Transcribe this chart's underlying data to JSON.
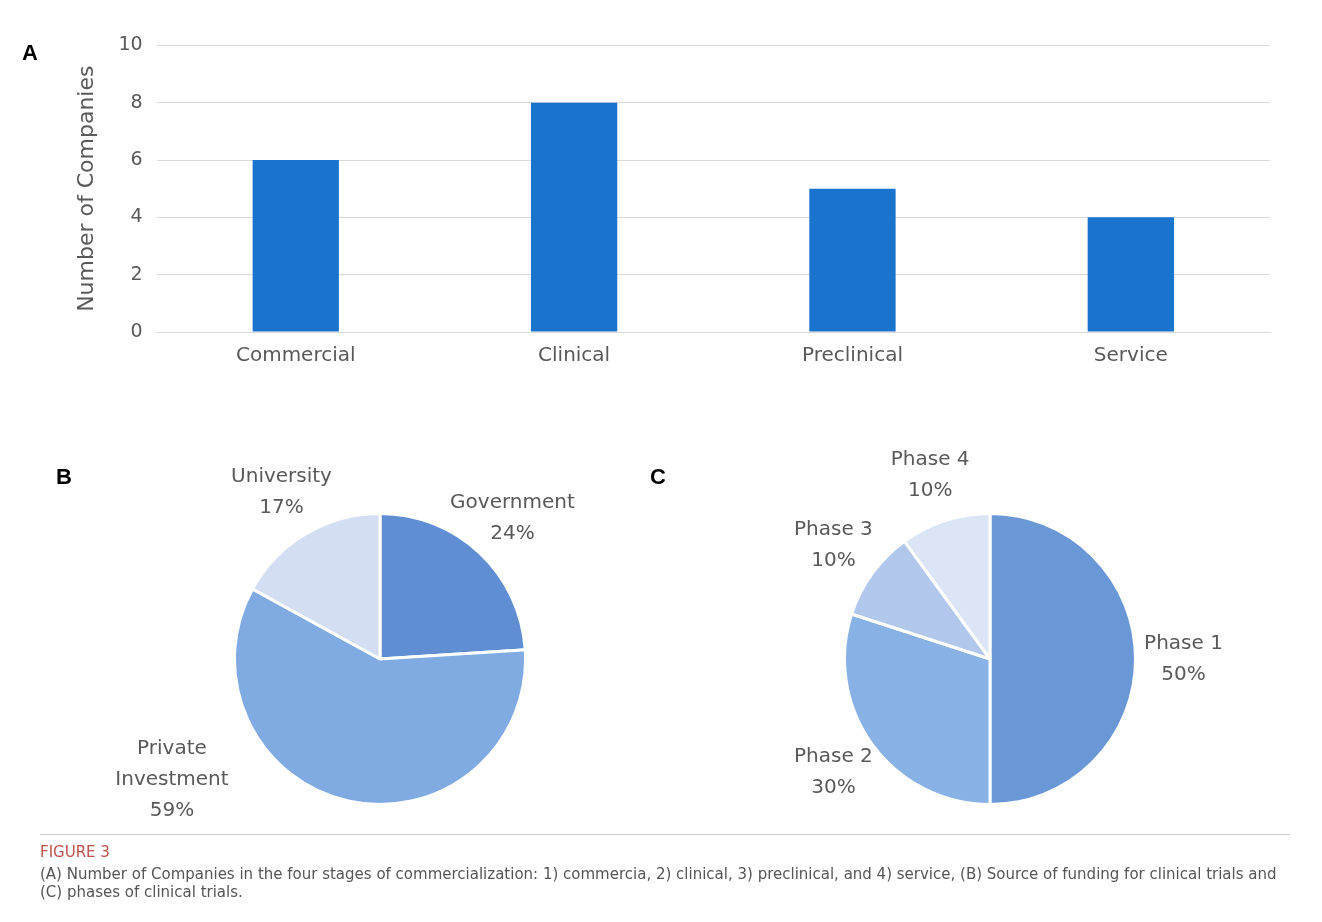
{
  "chart_data": [
    {
      "type": "bar",
      "title": "A",
      "ylabel": "Number of Companies",
      "categories": [
        "Commercial",
        "Clinical",
        "Preclinical",
        "Service"
      ],
      "values": [
        6,
        8,
        5,
        4
      ],
      "color": "#1a73cc",
      "ylim": [
        0,
        10
      ],
      "yticks": [
        0,
        2,
        4,
        6,
        8,
        10
      ],
      "grid": "y",
      "legend": false
    },
    {
      "type": "pie",
      "title": "B",
      "categories": [
        "Government",
        "Private Investment",
        "University"
      ],
      "values": [
        24,
        59,
        17
      ],
      "value_labels": [
        "24%",
        "59%",
        "17%"
      ],
      "colors": [
        "#5f8fd2",
        "#80aae2",
        "#d3def2"
      ],
      "legend": false
    },
    {
      "type": "pie",
      "title": "C",
      "categories": [
        "Phase 1",
        "Phase 2",
        "Phase 3",
        "Phase 4"
      ],
      "values": [
        50,
        30,
        10,
        10
      ],
      "value_labels": [
        "50%",
        "30%",
        "10%",
        "10%"
      ],
      "colors": [
        "#6a97d6",
        "#88b1e6",
        "#b2c7ec",
        "#dce5f5"
      ],
      "legend": false,
      "annotations": [
        "FIGURE 3",
        "(A) Number of Companies in the four stages of commercialization: 1) commercia, 2) clinical, 3) preclinical, and 4) service, (B) Source of funding for clinical trials and (C) phases of clinical trials."
      ]
    }
  ]
}
